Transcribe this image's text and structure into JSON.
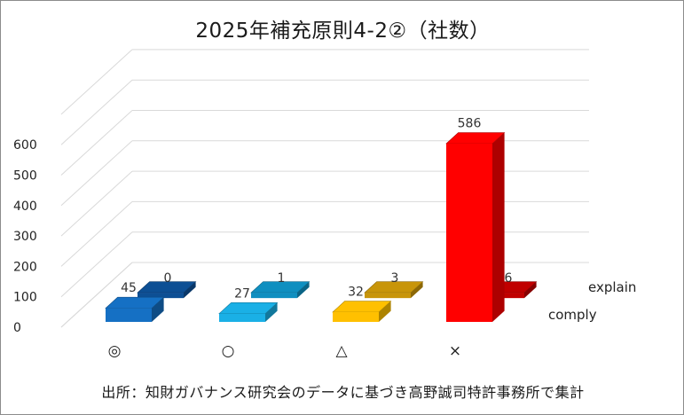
{
  "chart_data": {
    "type": "bar",
    "variant": "3d-column",
    "title": "2025年補充原則4-2②（社数）",
    "categories": [
      "◎",
      "○",
      "△",
      "×"
    ],
    "series": [
      {
        "name": "comply",
        "values": [
          45,
          27,
          32,
          586
        ]
      },
      {
        "name": "explain",
        "values": [
          0,
          1,
          3,
          6
        ]
      }
    ],
    "yticks": [
      "0",
      "100",
      "200",
      "300",
      "400",
      "500",
      "600"
    ],
    "ylim": [
      0,
      700
    ],
    "grid": true,
    "legend": "right",
    "colors": {
      "comply": [
        "#1570c4",
        "#1ab0e6",
        "#ffc000",
        "#ff0000"
      ],
      "explain": [
        "#0d4f94",
        "#0f8fc0",
        "#c8950a",
        "#c00000"
      ],
      "gridline": "#d9d9d9"
    }
  },
  "source_note": "出所：知財ガバナンス研究会のデータに基づき高野誠司特許事務所で集計"
}
